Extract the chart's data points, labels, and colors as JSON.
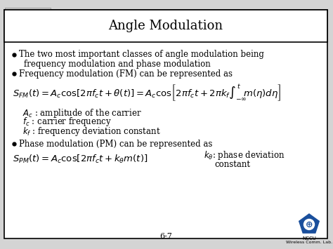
{
  "title": "Angle Modulation",
  "bg_color": "#d4d4d4",
  "slide_bg": "#ffffff",
  "border_color": "#000000",
  "footer": "6-7",
  "nccu_text": "NCCU\nWireless Comm. Lab.",
  "title_fontsize": 13,
  "body_fontsize": 8.5,
  "eq_fontsize": 9.5,
  "def_fontsize": 8.5,
  "tab_color": "#b0b0b0",
  "tab2_color": "#888888"
}
